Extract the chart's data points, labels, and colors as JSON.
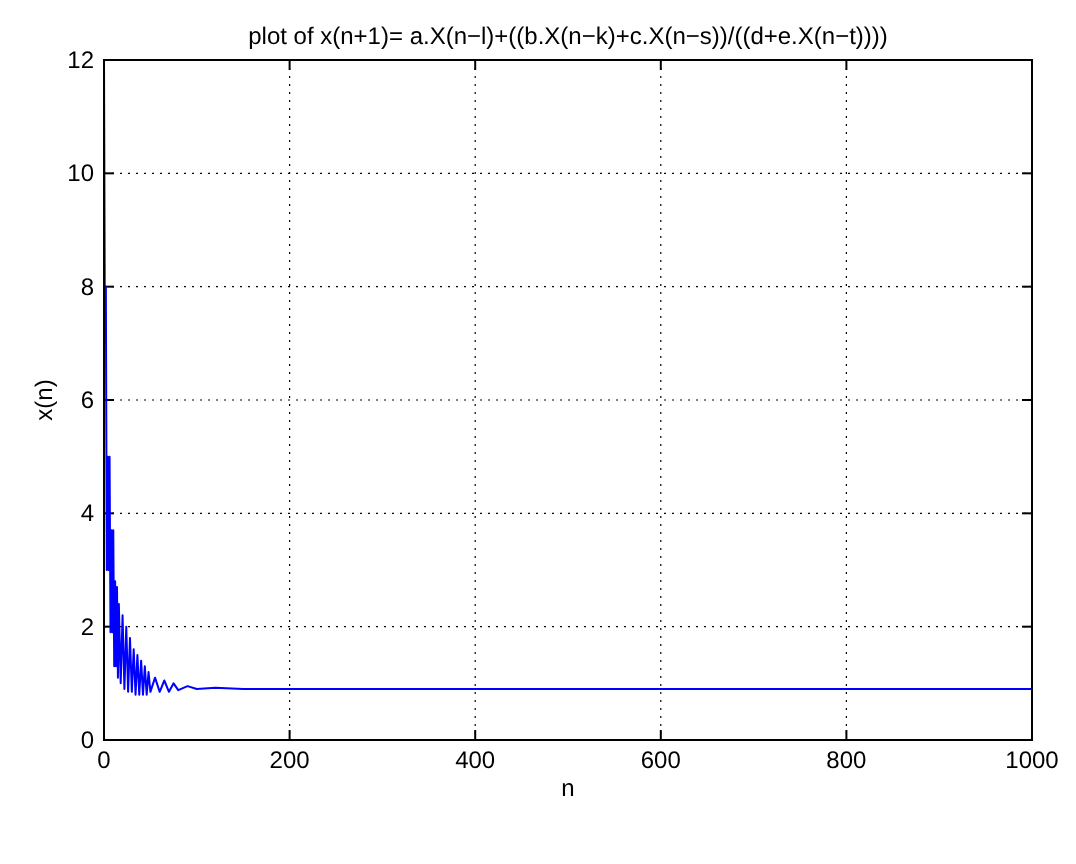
{
  "chart_data": {
    "type": "line",
    "title": "plot of x(n+1)=  a.X(n−l)+((b.X(n−k)+c.X(n−s))/((d+e.X(n−t))))",
    "xlabel": "n",
    "ylabel": "x(n)",
    "x": [
      0,
      1,
      2,
      3,
      4,
      5,
      6,
      7,
      8,
      9,
      10,
      11,
      12,
      13,
      14,
      15,
      16,
      18,
      20,
      22,
      24,
      26,
      28,
      30,
      32,
      34,
      36,
      38,
      40,
      42,
      44,
      46,
      48,
      50,
      55,
      60,
      65,
      70,
      75,
      80,
      90,
      100,
      120,
      150,
      200,
      1000
    ],
    "series": [
      {
        "color": "#0000ff",
        "values": [
          12,
          7,
          8,
          3,
          5,
          3,
          5,
          1.9,
          3.7,
          1.9,
          3.7,
          1.3,
          2.8,
          1.3,
          2.7,
          1.1,
          2.4,
          1.0,
          2.2,
          0.9,
          2.0,
          0.85,
          1.8,
          0.85,
          1.6,
          0.8,
          1.5,
          0.8,
          1.4,
          0.8,
          1.3,
          0.8,
          1.2,
          0.85,
          1.1,
          0.85,
          1.05,
          0.85,
          1.0,
          0.88,
          0.95,
          0.9,
          0.92,
          0.9,
          0.9,
          0.9
        ]
      }
    ],
    "xlim": [
      0,
      1000
    ],
    "xticks": [
      0,
      200,
      400,
      600,
      800,
      1000
    ],
    "ylim": [
      0,
      12
    ],
    "yticks": [
      0,
      2,
      4,
      6,
      8,
      10,
      12
    ],
    "grid": true,
    "line_style": "solid",
    "marker": "none"
  }
}
